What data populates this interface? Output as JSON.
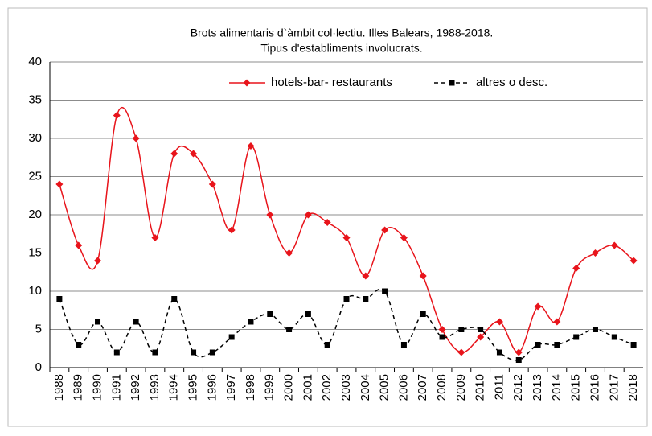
{
  "chart_data": {
    "type": "line",
    "title": [
      "Brots alimentaris d`àmbit col·lectiu. Illes Balears, 1988-2018.",
      "Tipus d'establiments involucrats."
    ],
    "categories": [
      "1988",
      "1989",
      "1990",
      "1991",
      "1992",
      "1993",
      "1994",
      "1995",
      "1996",
      "1997",
      "1998",
      "1999",
      "2000",
      "2001",
      "2002",
      "2003",
      "2004",
      "2005",
      "2006",
      "2007",
      "2008",
      "2009",
      "2010",
      "2011",
      "2012",
      "2013",
      "2014",
      "2015",
      "2016",
      "2017",
      "2018"
    ],
    "series": [
      {
        "name": "hotels-bar- restaurants",
        "color": "#e8141b",
        "marker": "diamond",
        "dash": false,
        "values": [
          24,
          16,
          14,
          33,
          30,
          17,
          28,
          28,
          24,
          18,
          29,
          20,
          15,
          20,
          19,
          17,
          12,
          18,
          17,
          12,
          5,
          2,
          4,
          6,
          2,
          8,
          6,
          13,
          15,
          16,
          14
        ]
      },
      {
        "name": "altres o desc.",
        "color": "#000000",
        "marker": "square",
        "dash": true,
        "values": [
          9,
          3,
          6,
          2,
          6,
          2,
          9,
          2,
          2,
          4,
          6,
          7,
          5,
          7,
          3,
          9,
          9,
          10,
          3,
          7,
          4,
          5,
          5,
          2,
          1,
          3,
          3,
          4,
          5,
          4,
          3
        ]
      }
    ],
    "ylim": [
      0,
      40
    ],
    "yticks": [
      0,
      5,
      10,
      15,
      20,
      25,
      30,
      35,
      40
    ],
    "grid": true,
    "legend": "top"
  }
}
